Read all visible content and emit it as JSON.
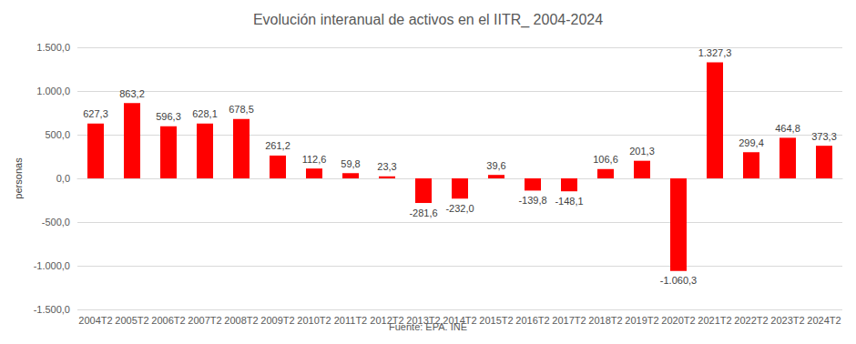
{
  "chart_data": {
    "type": "bar",
    "title": "Evolución interanual de activos en el IITR_ 2004-2024",
    "y_label": "personas",
    "source": "Fuente: EPA. INE",
    "categories": [
      "2004T2",
      "2005T2",
      "2006T2",
      "2007T2",
      "2008T2",
      "2009T2",
      "2010T2",
      "2011T2",
      "2012T2",
      "2013T2",
      "2014T2",
      "2015T2",
      "2016T2",
      "2017T2",
      "2018T2",
      "2019T2",
      "2020T2",
      "2021T2",
      "2022T2",
      "2023T2",
      "2024T2"
    ],
    "values": [
      627.3,
      863.2,
      596.3,
      628.1,
      678.5,
      261.2,
      112.6,
      59.8,
      23.3,
      -281.6,
      -232.0,
      39.6,
      -139.8,
      -148.1,
      106.6,
      201.3,
      -1060.3,
      1327.3,
      299.4,
      464.8,
      373.3
    ],
    "value_labels": [
      "627,3",
      "863,2",
      "596,3",
      "628,1",
      "678,5",
      "261,2",
      "112,6",
      "59,8",
      "23,3",
      "-281,6",
      "-232,0",
      "39,6",
      "-139,8",
      "-148,1",
      "106,6",
      "201,3",
      "-1.060,3",
      "1.327,3",
      "299,4",
      "464,8",
      "373,3"
    ],
    "color": "#ff0000",
    "ylim": [
      -1500,
      1500
    ],
    "yticks": [
      {
        "value": -1500,
        "label": "-1.500,0"
      },
      {
        "value": -1000,
        "label": "-1.000,0"
      },
      {
        "value": -500,
        "label": "-500,0"
      },
      {
        "value": 0,
        "label": "0,0"
      },
      {
        "value": 500,
        "label": "500,0"
      },
      {
        "value": 1000,
        "label": "1.000,0"
      },
      {
        "value": 1500,
        "label": "1.500,0"
      }
    ],
    "grid": true,
    "data_labels": true
  }
}
